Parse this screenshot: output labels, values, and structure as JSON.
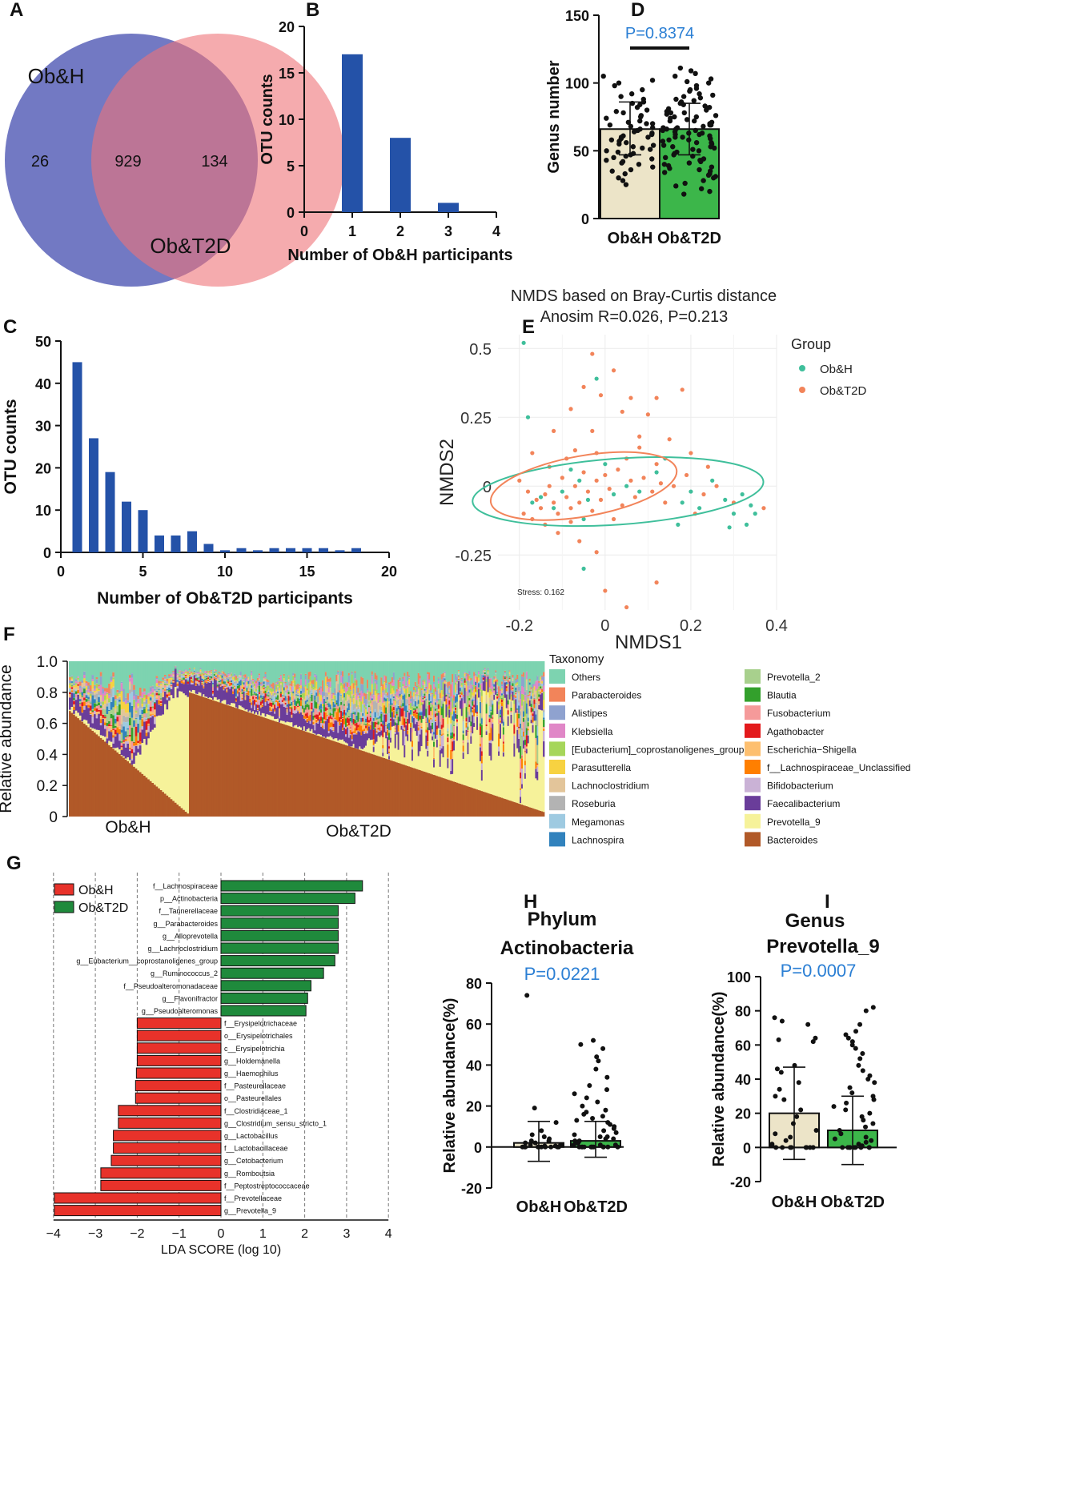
{
  "panel_labels": {
    "a": "A",
    "b": "B",
    "c": "C",
    "d": "D",
    "e": "E",
    "f": "F",
    "g": "G",
    "h": "H",
    "i": "I"
  },
  "colors": {
    "bar_blue": "#2452a8",
    "obh_fill": "#ece4c8",
    "t2d_fill": "#3cb64a",
    "lda_red": "#e8322a",
    "lda_green": "#1f8a3c",
    "blue_text": "#2b7fd4",
    "nmds_h": "#3fbf9b",
    "nmds_t2d": "#f2845a"
  },
  "chart_data": [
    {
      "id": "A",
      "type": "venn",
      "sets": [
        {
          "name": "Ob&H",
          "color": "#6a72c0"
        },
        {
          "name": "Ob&T2D",
          "color": "#ef7378"
        }
      ],
      "only_a": "26",
      "both": "929",
      "only_b": "134"
    },
    {
      "id": "B",
      "type": "bar",
      "title": "",
      "xlabel": "Number of Ob&H participants",
      "ylabel": "OTU counts",
      "x": [
        1,
        2,
        3
      ],
      "values": [
        17,
        8,
        1
      ],
      "xlim": [
        0,
        4
      ],
      "ylim": [
        0,
        20
      ],
      "xticks": [
        "0",
        "1",
        "2",
        "3",
        "4"
      ],
      "yticks": [
        "0",
        "5",
        "10",
        "15",
        "20"
      ]
    },
    {
      "id": "C",
      "type": "bar",
      "xlabel": "Number of Ob&T2D participants",
      "ylabel": "OTU counts",
      "x": [
        1,
        2,
        3,
        4,
        5,
        6,
        7,
        8,
        9,
        10,
        11,
        12,
        13,
        14,
        15,
        16,
        17,
        18
      ],
      "values": [
        45,
        27,
        19,
        12,
        10,
        4,
        4,
        5,
        2,
        0.5,
        1,
        0.5,
        1,
        1,
        1,
        1,
        0.5,
        1
      ],
      "xlim": [
        0,
        20
      ],
      "ylim": [
        0,
        50
      ],
      "xticks": [
        "0",
        "5",
        "10",
        "15",
        "20"
      ],
      "yticks": [
        "0",
        "10",
        "20",
        "30",
        "40",
        "50"
      ]
    },
    {
      "id": "D",
      "type": "bar_scatter",
      "ylabel": "Genus number",
      "categories": [
        "Ob&H",
        "Ob&T2D"
      ],
      "means": [
        66,
        66
      ],
      "sd_upper": [
        86,
        85
      ],
      "sd_lower": [
        47,
        47
      ],
      "ylim": [
        0,
        150
      ],
      "yticks": [
        "0",
        "50",
        "100",
        "150"
      ],
      "annotation": "P=0.8374",
      "points_obh": [
        105,
        102,
        100,
        98,
        95,
        92,
        90,
        88,
        86,
        85,
        84,
        82,
        80,
        79,
        78,
        76,
        75,
        74,
        72,
        71,
        70,
        70,
        69,
        68,
        67,
        66,
        65,
        64,
        63,
        62,
        61,
        60,
        60,
        59,
        58,
        57,
        56,
        55,
        54,
        53,
        52,
        51,
        50,
        49,
        48,
        47,
        46,
        45,
        44,
        43,
        42,
        41,
        40,
        38,
        36,
        35,
        33,
        30,
        28,
        25
      ],
      "points_t2d": [
        111,
        109,
        107,
        105,
        103,
        101,
        100,
        98,
        96,
        95,
        94,
        92,
        91,
        90,
        89,
        88,
        87,
        86,
        85,
        84,
        83,
        82,
        81,
        80,
        79,
        78,
        78,
        77,
        76,
        75,
        75,
        74,
        73,
        72,
        72,
        71,
        70,
        70,
        69,
        69,
        68,
        67,
        67,
        66,
        66,
        65,
        65,
        64,
        63,
        63,
        62,
        62,
        61,
        60,
        60,
        59,
        58,
        58,
        57,
        56,
        56,
        55,
        54,
        53,
        53,
        52,
        51,
        50,
        49,
        48,
        47,
        46,
        45,
        44,
        43,
        42,
        41,
        40,
        39,
        38,
        37,
        36,
        35,
        34,
        33,
        32,
        31,
        30,
        28,
        26,
        24,
        22,
        20,
        18
      ],
      "annotation_color": "#2b7fd4"
    },
    {
      "id": "E",
      "type": "scatter",
      "title": "NMDS based on Bray-Curtis distance",
      "subtitle": "Anosim  R=0.026,  P=0.213",
      "xlabel": "NMDS1",
      "ylabel": "NMDS2",
      "xlim": [
        -0.25,
        0.4
      ],
      "ylim": [
        -0.45,
        0.55
      ],
      "xticks": [
        "-0.2",
        "0",
        "0.2",
        "0.4"
      ],
      "yticks": [
        "-0.25",
        "0",
        "0.25",
        "0.5"
      ],
      "legend_title": "Group",
      "legend": [
        "Ob&H",
        "Ob&T2D"
      ],
      "stress": "Stress: 0.162",
      "ellipse_h": {
        "cx": 0.03,
        "cy": -0.02,
        "rx": 0.34,
        "ry": 0.12,
        "angle": -4
      },
      "ellipse_t2d": {
        "cx": -0.05,
        "cy": 0.0,
        "rx": 0.22,
        "ry": 0.11,
        "angle": -10
      },
      "points_h": [
        [
          -0.19,
          0.52
        ],
        [
          -0.17,
          -0.06
        ],
        [
          -0.15,
          -0.04
        ],
        [
          -0.12,
          -0.08
        ],
        [
          -0.1,
          -0.02
        ],
        [
          -0.06,
          0.02
        ],
        [
          -0.04,
          -0.05
        ],
        [
          -0.02,
          0.39
        ],
        [
          -0.05,
          -0.12
        ],
        [
          0.0,
          0.08
        ],
        [
          0.02,
          -0.03
        ],
        [
          0.05,
          0.0
        ],
        [
          0.08,
          -0.02
        ],
        [
          0.12,
          0.05
        ],
        [
          0.14,
          0.1
        ],
        [
          0.18,
          -0.06
        ],
        [
          0.2,
          -0.02
        ],
        [
          0.22,
          -0.08
        ],
        [
          0.25,
          0.02
        ],
        [
          0.28,
          -0.05
        ],
        [
          0.3,
          -0.1
        ],
        [
          0.32,
          -0.03
        ],
        [
          0.34,
          -0.07
        ],
        [
          0.35,
          -0.1
        ],
        [
          0.33,
          -0.14
        ],
        [
          -0.05,
          -0.3
        ],
        [
          0.17,
          -0.14
        ],
        [
          0.29,
          -0.15
        ],
        [
          -0.18,
          0.25
        ],
        [
          -0.08,
          0.06
        ]
      ],
      "points_t2d": [
        [
          -0.03,
          0.48
        ],
        [
          0.02,
          0.42
        ],
        [
          -0.05,
          0.36
        ],
        [
          -0.01,
          0.33
        ],
        [
          0.06,
          0.32
        ],
        [
          0.12,
          0.32
        ],
        [
          0.18,
          0.35
        ],
        [
          -0.08,
          0.28
        ],
        [
          0.04,
          0.27
        ],
        [
          0.1,
          0.26
        ],
        [
          -0.12,
          0.2
        ],
        [
          -0.03,
          0.2
        ],
        [
          0.08,
          0.18
        ],
        [
          0.15,
          0.17
        ],
        [
          -0.17,
          0.12
        ],
        [
          -0.09,
          0.1
        ],
        [
          -0.02,
          0.12
        ],
        [
          0.05,
          0.1
        ],
        [
          0.12,
          0.08
        ],
        [
          0.2,
          0.12
        ],
        [
          0.24,
          0.07
        ],
        [
          -0.2,
          0.02
        ],
        [
          -0.18,
          -0.02
        ],
        [
          -0.16,
          -0.05
        ],
        [
          -0.15,
          -0.08
        ],
        [
          -0.14,
          -0.03
        ],
        [
          -0.13,
          0.0
        ],
        [
          -0.12,
          -0.06
        ],
        [
          -0.11,
          -0.1
        ],
        [
          -0.1,
          0.03
        ],
        [
          -0.09,
          -0.04
        ],
        [
          -0.08,
          -0.08
        ],
        [
          -0.07,
          0.0
        ],
        [
          -0.06,
          -0.06
        ],
        [
          -0.05,
          0.05
        ],
        [
          -0.04,
          -0.02
        ],
        [
          -0.03,
          -0.09
        ],
        [
          -0.02,
          0.02
        ],
        [
          -0.01,
          -0.05
        ],
        [
          0.0,
          0.04
        ],
        [
          0.01,
          -0.01
        ],
        [
          0.03,
          0.06
        ],
        [
          0.04,
          -0.07
        ],
        [
          0.06,
          0.02
        ],
        [
          0.07,
          -0.04
        ],
        [
          0.09,
          0.03
        ],
        [
          0.11,
          -0.02
        ],
        [
          0.13,
          0.01
        ],
        [
          0.16,
          0.0
        ],
        [
          0.19,
          0.04
        ],
        [
          0.23,
          -0.03
        ],
        [
          0.26,
          0.0
        ],
        [
          0.3,
          -0.06
        ],
        [
          0.37,
          -0.08
        ],
        [
          -0.19,
          -0.1
        ],
        [
          -0.17,
          -0.12
        ],
        [
          -0.14,
          -0.14
        ],
        [
          -0.11,
          -0.17
        ],
        [
          -0.08,
          -0.13
        ],
        [
          -0.06,
          -0.2
        ],
        [
          -0.02,
          -0.24
        ],
        [
          0.0,
          -0.38
        ],
        [
          0.05,
          -0.44
        ],
        [
          0.12,
          -0.35
        ],
        [
          -0.13,
          0.07
        ],
        [
          -0.07,
          0.13
        ],
        [
          0.02,
          -0.12
        ],
        [
          0.08,
          0.14
        ],
        [
          0.14,
          -0.06
        ],
        [
          0.21,
          -0.1
        ]
      ]
    },
    {
      "id": "F",
      "type": "stacked_bar",
      "ylabel": "Relative abundance",
      "yticks": [
        "0",
        "0.2",
        "0.4",
        "0.6",
        "0.8",
        "1.0"
      ],
      "group_labels": [
        "Ob&H",
        "Ob&T2D"
      ],
      "legend_title": "Taxonomy",
      "taxa": [
        {
          "name": "Others",
          "color": "#7dd3b0"
        },
        {
          "name": "Parabacteroides",
          "color": "#f2845a"
        },
        {
          "name": "Alistipes",
          "color": "#8fa2cf"
        },
        {
          "name": "Klebsiella",
          "color": "#e087c7"
        },
        {
          "name": "[Eubacterium]_coprostanoligenes_group",
          "color": "#a6d65a"
        },
        {
          "name": "Parasutterella",
          "color": "#f7d241"
        },
        {
          "name": "Lachnoclostridium",
          "color": "#e3c59a"
        },
        {
          "name": "Roseburia",
          "color": "#b3b3b3"
        },
        {
          "name": "Megamonas",
          "color": "#9ecae1"
        },
        {
          "name": "Lachnospira",
          "color": "#3182bd"
        },
        {
          "name": "Prevotella_2",
          "color": "#a8d08d"
        },
        {
          "name": "Blautia",
          "color": "#33a02c"
        },
        {
          "name": "Fusobacterium",
          "color": "#f59a9a"
        },
        {
          "name": "Agathobacter",
          "color": "#e31a1c"
        },
        {
          "name": "Escherichia−Shigella",
          "color": "#fdbf6f"
        },
        {
          "name": "f__Lachnospiraceae_Unclassified",
          "color": "#ff7f00"
        },
        {
          "name": "Bifidobacterium",
          "color": "#cab2d6"
        },
        {
          "name": "Faecalibacterium",
          "color": "#6a3d9a"
        },
        {
          "name": "Prevotella_9",
          "color": "#f6f29a"
        },
        {
          "name": "Bacteroides",
          "color": "#b15928"
        }
      ]
    },
    {
      "id": "G",
      "type": "lda_bar",
      "xlabel": "LDA SCORE (log 10)",
      "xticks": [
        "−4",
        "−3",
        "−2",
        "−1",
        "0",
        "1",
        "2",
        "3",
        "4"
      ],
      "legend": [
        "Ob&H",
        "Ob&T2D"
      ],
      "features": [
        {
          "name": "f__Lachnospiraceae",
          "value": 3.38
        },
        {
          "name": "p__Actinobacteria",
          "value": 3.2
        },
        {
          "name": "f__Tannerellaceae",
          "value": 2.8
        },
        {
          "name": "g__Parabacteroides",
          "value": 2.8
        },
        {
          "name": "g__Alloprevotella",
          "value": 2.8
        },
        {
          "name": "g__Lachnoclostridium",
          "value": 2.8
        },
        {
          "name": "g__Eubacterium__coprostanoligenes_group",
          "value": 2.72
        },
        {
          "name": "g__Ruminococcus_2",
          "value": 2.45
        },
        {
          "name": "f__Pseudoalteromonadaceae",
          "value": 2.15
        },
        {
          "name": "g__Flavonifractor",
          "value": 2.07
        },
        {
          "name": "g__Pseudoalteromonas",
          "value": 2.03
        },
        {
          "name": "f__Erysipelotrichaceae",
          "value": -2.0
        },
        {
          "name": "o__Erysipelotrichales",
          "value": -2.0
        },
        {
          "name": "c__Erysipelotrichia",
          "value": -2.0
        },
        {
          "name": "g__Holdemanella",
          "value": -2.0
        },
        {
          "name": "g__Haemophilus",
          "value": -2.02
        },
        {
          "name": "f__Pasteurellaceae",
          "value": -2.04
        },
        {
          "name": "o__Pasteurellales",
          "value": -2.04
        },
        {
          "name": "f__Clostridiaceae_1",
          "value": -2.45
        },
        {
          "name": "g__Clostridium_sensu_stricto_1",
          "value": -2.45
        },
        {
          "name": "g__Lactobacillus",
          "value": -2.57
        },
        {
          "name": "f__Lactobacillaceae",
          "value": -2.57
        },
        {
          "name": "g__Cetobacterium",
          "value": -2.62
        },
        {
          "name": "g__Romboutsia",
          "value": -2.87
        },
        {
          "name": "f__Peptostreptococcaceae",
          "value": -2.87
        },
        {
          "name": "f__Prevotellaceae",
          "value": -3.98
        },
        {
          "name": "g__Prevotella_9",
          "value": -3.98
        }
      ]
    },
    {
      "id": "H",
      "type": "bar_scatter",
      "title_line1": "Phylum",
      "title_line2": "Actinobacteria",
      "annotation": "P=0.0221",
      "ylabel": "Relative abundance(%)",
      "categories": [
        "Ob&H",
        "Ob&T2D"
      ],
      "means": [
        2,
        3
      ],
      "sd_upper": [
        12.5,
        12.5
      ],
      "sd_lower": [
        -7,
        -5
      ],
      "ylim": [
        -20,
        80
      ],
      "yticks": [
        "-20",
        "0",
        "20",
        "40",
        "60",
        "80"
      ],
      "points_obh": [
        74,
        19,
        12,
        8,
        6,
        5,
        4,
        3,
        3,
        2,
        2,
        1,
        1,
        1,
        0.5,
        0.5,
        0,
        0,
        0,
        0,
        0,
        0,
        0,
        0,
        0,
        0
      ],
      "points_t2d": [
        52,
        50,
        48,
        44,
        42,
        38,
        34,
        30,
        28,
        26,
        24,
        22,
        20,
        18,
        17,
        16,
        15,
        14,
        13,
        12,
        11,
        10,
        9,
        8,
        7,
        6,
        5,
        5,
        4,
        4,
        3,
        3,
        2,
        2,
        2,
        1,
        1,
        1,
        0,
        0,
        0,
        0,
        0,
        0,
        0,
        0,
        0,
        0,
        0,
        0
      ]
    },
    {
      "id": "I",
      "type": "bar_scatter",
      "title_line1": "Genus",
      "title_line2": "Prevotella_9",
      "annotation": "P=0.0007",
      "ylabel": "Relative abundance(%)",
      "categories": [
        "Ob&H",
        "Ob&T2D"
      ],
      "means": [
        20,
        10
      ],
      "sd_upper": [
        47,
        30
      ],
      "sd_lower": [
        -7,
        -10
      ],
      "ylim": [
        -20,
        100
      ],
      "yticks": [
        "-20",
        "0",
        "20",
        "40",
        "60",
        "80",
        "100"
      ],
      "points_obh": [
        76,
        74,
        72,
        64,
        63,
        62,
        48,
        46,
        44,
        38,
        34,
        30,
        28,
        22,
        18,
        14,
        10,
        8,
        6,
        4,
        2,
        1,
        0,
        0,
        0,
        0,
        0,
        0,
        0,
        0
      ],
      "points_t2d": [
        82,
        80,
        72,
        68,
        66,
        64,
        62,
        60,
        58,
        55,
        52,
        48,
        45,
        42,
        40,
        38,
        35,
        32,
        30,
        28,
        26,
        24,
        22,
        20,
        18,
        16,
        14,
        12,
        10,
        8,
        6,
        5,
        4,
        3,
        2,
        1,
        0,
        0,
        0,
        0,
        0,
        0,
        0,
        0,
        0
      ]
    }
  ]
}
